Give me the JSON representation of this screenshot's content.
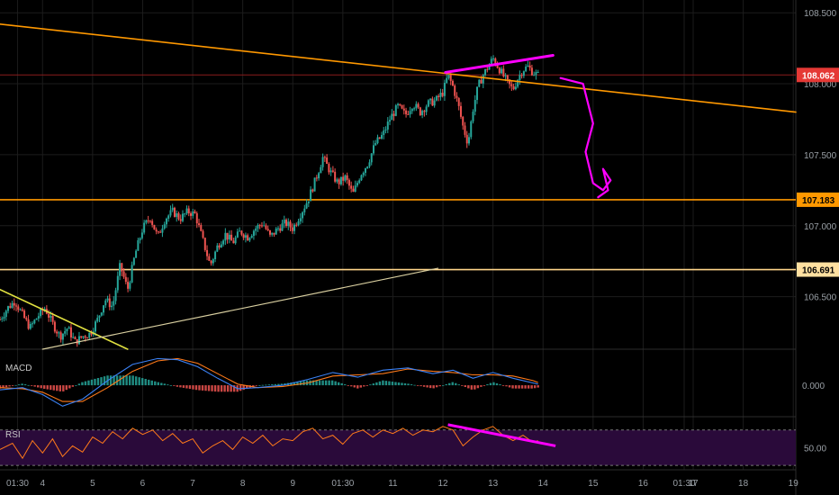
{
  "chart_data": {
    "type": "candlestick",
    "price_axis": {
      "ticks": [
        {
          "label": "108.500",
          "value": 108.5
        },
        {
          "label": "108.000",
          "value": 108.0
        },
        {
          "label": "107.500",
          "value": 107.5
        },
        {
          "label": "107.000",
          "value": 107.0
        },
        {
          "label": "106.500",
          "value": 106.5
        }
      ],
      "range": [
        106.13,
        108.59
      ]
    },
    "price_tags": [
      {
        "label": "108.062",
        "value": 108.062,
        "bg": "#e53935",
        "fg": "#ffffff",
        "line": "#8a1c1c"
      },
      {
        "label": "107.183",
        "value": 107.183,
        "bg": "#ff9800",
        "fg": "#000000",
        "line": "#ff9800"
      },
      {
        "label": "106.691",
        "value": 106.691,
        "bg": "#ffe0a0",
        "fg": "#000000",
        "line": "#ffd58a"
      }
    ],
    "time_axis": {
      "range": [
        3.15,
        19.05
      ],
      "ticks": [
        {
          "label": "01:30",
          "t": 3.5
        },
        {
          "label": "4",
          "t": 4
        },
        {
          "label": "5",
          "t": 5
        },
        {
          "label": "6",
          "t": 6
        },
        {
          "label": "7",
          "t": 7
        },
        {
          "label": "8",
          "t": 8
        },
        {
          "label": "9",
          "t": 9
        },
        {
          "label": "01:30",
          "t": 10
        },
        {
          "label": "11",
          "t": 11
        },
        {
          "label": "12",
          "t": 12
        },
        {
          "label": "13",
          "t": 13
        },
        {
          "label": "14",
          "t": 14
        },
        {
          "label": "15",
          "t": 15
        },
        {
          "label": "16",
          "t": 16
        },
        {
          "label": "01:30",
          "t": 16.82
        },
        {
          "label": "17",
          "t": 17
        },
        {
          "label": "18",
          "t": 18
        },
        {
          "label": "19",
          "t": 19
        }
      ]
    },
    "price_path": [
      [
        3.15,
        106.34
      ],
      [
        3.3,
        106.42
      ],
      [
        3.45,
        106.47
      ],
      [
        3.6,
        106.37
      ],
      [
        3.75,
        106.28
      ],
      [
        3.9,
        106.36
      ],
      [
        4.05,
        106.42
      ],
      [
        4.2,
        106.31
      ],
      [
        4.35,
        106.22
      ],
      [
        4.5,
        106.28
      ],
      [
        4.65,
        106.18
      ],
      [
        4.8,
        106.22
      ],
      [
        4.95,
        106.24
      ],
      [
        5.1,
        106.34
      ],
      [
        5.25,
        106.48
      ],
      [
        5.4,
        106.43
      ],
      [
        5.55,
        106.72
      ],
      [
        5.7,
        106.55
      ],
      [
        5.85,
        106.8
      ],
      [
        6.0,
        106.98
      ],
      [
        6.15,
        107.06
      ],
      [
        6.3,
        106.92
      ],
      [
        6.45,
        107.05
      ],
      [
        6.6,
        107.1
      ],
      [
        6.75,
        107.05
      ],
      [
        6.9,
        107.1
      ],
      [
        7.05,
        107.08
      ],
      [
        7.2,
        106.9
      ],
      [
        7.35,
        106.72
      ],
      [
        7.5,
        106.86
      ],
      [
        7.65,
        106.94
      ],
      [
        7.8,
        106.88
      ],
      [
        7.95,
        106.96
      ],
      [
        8.1,
        106.92
      ],
      [
        8.25,
        106.98
      ],
      [
        8.4,
        107.02
      ],
      [
        8.55,
        106.92
      ],
      [
        8.7,
        106.98
      ],
      [
        8.85,
        107.02
      ],
      [
        9.0,
        106.98
      ],
      [
        9.15,
        107.08
      ],
      [
        9.3,
        107.18
      ],
      [
        9.45,
        107.32
      ],
      [
        9.6,
        107.48
      ],
      [
        9.75,
        107.38
      ],
      [
        9.9,
        107.3
      ],
      [
        10.05,
        107.34
      ],
      [
        10.2,
        107.22
      ],
      [
        10.35,
        107.36
      ],
      [
        10.5,
        107.44
      ],
      [
        10.65,
        107.58
      ],
      [
        10.8,
        107.64
      ],
      [
        10.95,
        107.76
      ],
      [
        11.1,
        107.84
      ],
      [
        11.25,
        107.78
      ],
      [
        11.4,
        107.86
      ],
      [
        11.55,
        107.8
      ],
      [
        11.7,
        107.86
      ],
      [
        11.85,
        107.88
      ],
      [
        12.0,
        107.94
      ],
      [
        12.1,
        108.06
      ],
      [
        12.2,
        107.98
      ],
      [
        12.3,
        107.86
      ],
      [
        12.4,
        107.7
      ],
      [
        12.5,
        107.58
      ],
      [
        12.6,
        107.82
      ],
      [
        12.7,
        107.98
      ],
      [
        12.8,
        108.06
      ],
      [
        12.9,
        108.12
      ],
      [
        13.0,
        108.18
      ],
      [
        13.1,
        108.12
      ],
      [
        13.2,
        108.06
      ],
      [
        13.3,
        108.0
      ],
      [
        13.4,
        107.96
      ],
      [
        13.5,
        108.04
      ],
      [
        13.6,
        108.1
      ],
      [
        13.7,
        108.12
      ],
      [
        13.8,
        108.08
      ],
      [
        13.9,
        108.06
      ]
    ],
    "drawings": [
      {
        "kind": "line",
        "color": "#ff9800",
        "width": 1.6,
        "from": [
          3.15,
          108.42
        ],
        "to": [
          19.05,
          107.8
        ]
      },
      {
        "kind": "line",
        "color": "#ff00ff",
        "width": 3,
        "from": [
          12.05,
          108.08
        ],
        "to": [
          14.2,
          108.2
        ]
      },
      {
        "kind": "line",
        "color": "#e0e040",
        "width": 1.6,
        "from": [
          3.15,
          106.55
        ],
        "to": [
          5.7,
          106.13
        ]
      },
      {
        "kind": "line",
        "color": "#d9cfa0",
        "width": 1.2,
        "from": [
          4.0,
          106.13
        ],
        "to": [
          11.9,
          106.7
        ]
      },
      {
        "kind": "curve",
        "color": "#ff00ff",
        "width": 2.2,
        "points": [
          [
            14.35,
            108.04
          ],
          [
            14.8,
            108.0
          ],
          [
            15.0,
            107.72
          ],
          [
            14.85,
            107.52
          ],
          [
            15.0,
            107.3
          ],
          [
            15.2,
            107.25
          ],
          [
            15.35,
            107.32
          ],
          [
            15.2,
            107.4
          ],
          [
            15.3,
            107.25
          ],
          [
            15.1,
            107.2
          ]
        ]
      }
    ],
    "macd": {
      "label": "MACD",
      "tick": {
        "label": "0.000",
        "value": 0
      },
      "range": [
        -1.2,
        1.4
      ],
      "macd_line": [
        [
          3.15,
          -0.2
        ],
        [
          3.6,
          -0.1
        ],
        [
          4.0,
          -0.4
        ],
        [
          4.4,
          -0.9
        ],
        [
          4.8,
          -0.6
        ],
        [
          5.3,
          0.2
        ],
        [
          5.8,
          0.9
        ],
        [
          6.3,
          1.15
        ],
        [
          6.7,
          1.1
        ],
        [
          7.1,
          0.8
        ],
        [
          7.5,
          0.3
        ],
        [
          7.9,
          -0.15
        ],
        [
          8.3,
          -0.1
        ],
        [
          8.8,
          0.0
        ],
        [
          9.3,
          0.25
        ],
        [
          9.8,
          0.55
        ],
        [
          10.3,
          0.35
        ],
        [
          10.8,
          0.65
        ],
        [
          11.3,
          0.75
        ],
        [
          11.8,
          0.5
        ],
        [
          12.2,
          0.65
        ],
        [
          12.6,
          0.3
        ],
        [
          13.0,
          0.55
        ],
        [
          13.4,
          0.3
        ],
        [
          13.8,
          0.1
        ],
        [
          13.9,
          0.05
        ]
      ],
      "signal_line": [
        [
          3.15,
          -0.1
        ],
        [
          3.6,
          -0.15
        ],
        [
          4.0,
          -0.3
        ],
        [
          4.4,
          -0.7
        ],
        [
          4.8,
          -0.7
        ],
        [
          5.3,
          -0.1
        ],
        [
          5.8,
          0.6
        ],
        [
          6.3,
          1.05
        ],
        [
          6.7,
          1.15
        ],
        [
          7.1,
          0.95
        ],
        [
          7.5,
          0.5
        ],
        [
          7.9,
          0.05
        ],
        [
          8.3,
          -0.1
        ],
        [
          8.8,
          -0.05
        ],
        [
          9.3,
          0.1
        ],
        [
          9.8,
          0.4
        ],
        [
          10.3,
          0.45
        ],
        [
          10.8,
          0.5
        ],
        [
          11.3,
          0.7
        ],
        [
          11.8,
          0.6
        ],
        [
          12.2,
          0.55
        ],
        [
          12.6,
          0.45
        ],
        [
          13.0,
          0.45
        ],
        [
          13.4,
          0.4
        ],
        [
          13.8,
          0.2
        ],
        [
          13.9,
          0.12
        ]
      ],
      "macd_color": "#3b82f6",
      "signal_color": "#ff7a1a"
    },
    "rsi": {
      "label": "RSI",
      "tick": {
        "label": "50.00",
        "value": 50
      },
      "range": [
        25,
        85
      ],
      "bands": [
        30,
        70
      ],
      "band_fill": "#2a0a3a",
      "line_color": "#ff7a1a",
      "divergence": {
        "color": "#ff00ff",
        "from": [
          12.1,
          76
        ],
        "to": [
          14.25,
          52
        ]
      },
      "rsi_line": [
        [
          3.15,
          48
        ],
        [
          3.4,
          55
        ],
        [
          3.6,
          38
        ],
        [
          3.8,
          58
        ],
        [
          4.0,
          44
        ],
        [
          4.2,
          60
        ],
        [
          4.4,
          40
        ],
        [
          4.6,
          52
        ],
        [
          4.8,
          45
        ],
        [
          5.0,
          62
        ],
        [
          5.2,
          55
        ],
        [
          5.4,
          68
        ],
        [
          5.6,
          60
        ],
        [
          5.8,
          72
        ],
        [
          6.0,
          65
        ],
        [
          6.2,
          70
        ],
        [
          6.4,
          58
        ],
        [
          6.6,
          66
        ],
        [
          6.8,
          55
        ],
        [
          7.0,
          60
        ],
        [
          7.2,
          44
        ],
        [
          7.4,
          52
        ],
        [
          7.6,
          58
        ],
        [
          7.8,
          48
        ],
        [
          8.0,
          62
        ],
        [
          8.2,
          55
        ],
        [
          8.4,
          64
        ],
        [
          8.6,
          52
        ],
        [
          8.8,
          60
        ],
        [
          9.0,
          58
        ],
        [
          9.2,
          68
        ],
        [
          9.4,
          72
        ],
        [
          9.6,
          60
        ],
        [
          9.8,
          64
        ],
        [
          10.0,
          54
        ],
        [
          10.2,
          66
        ],
        [
          10.4,
          70
        ],
        [
          10.6,
          62
        ],
        [
          10.8,
          70
        ],
        [
          11.0,
          66
        ],
        [
          11.2,
          72
        ],
        [
          11.4,
          64
        ],
        [
          11.6,
          70
        ],
        [
          11.8,
          68
        ],
        [
          12.0,
          74
        ],
        [
          12.2,
          70
        ],
        [
          12.4,
          52
        ],
        [
          12.6,
          62
        ],
        [
          12.8,
          70
        ],
        [
          13.0,
          74
        ],
        [
          13.2,
          64
        ],
        [
          13.4,
          58
        ],
        [
          13.6,
          64
        ],
        [
          13.8,
          56
        ],
        [
          13.9,
          58
        ]
      ]
    },
    "colors": {
      "background": "#000000",
      "grid": "#1c1c1c",
      "separator": "#2d2d2d",
      "up_candle": "#26a69a",
      "down_candle": "#ef5350",
      "axis_text": "#9aa0a6"
    }
  }
}
